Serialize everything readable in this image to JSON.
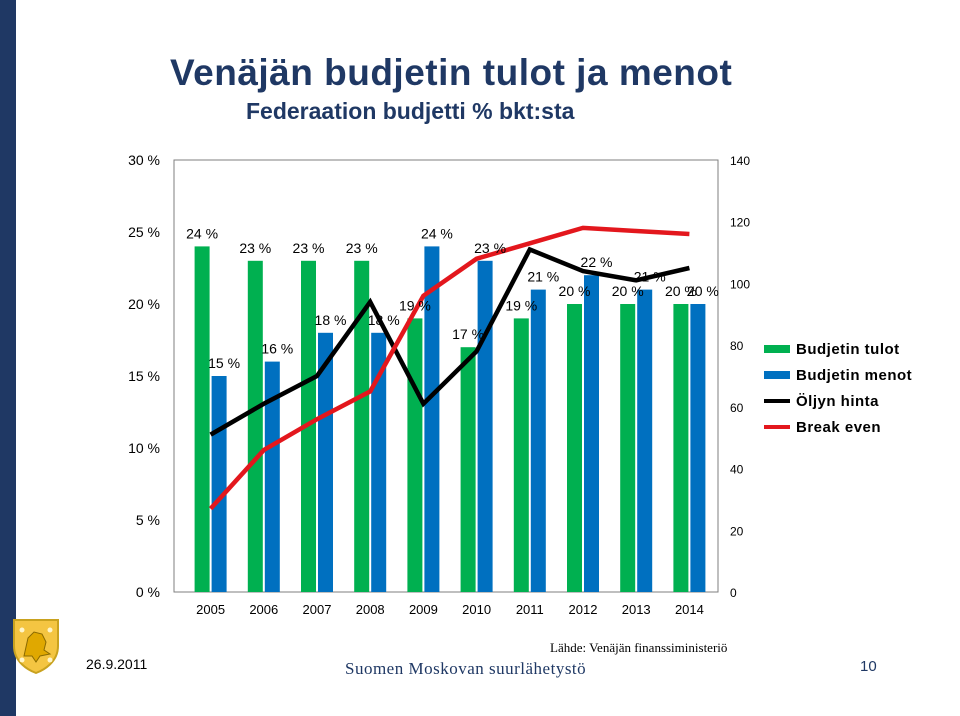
{
  "slide": {
    "title": "Venäjän budjetin tulot ja menot",
    "subtitle": "Federaation budjetti % bkt:sta",
    "date": "26.9.2011",
    "source": "Lähde: Venäjän finanssiministeriö",
    "embassy": "Suomen Moskovan suurlähetystö",
    "page_number": "10",
    "logo_icon": "finnish-coat-of-arms-icon",
    "left_bar_color": "#1f3864"
  },
  "chart_data": {
    "type": "bar",
    "categories": [
      "2005",
      "2006",
      "2007",
      "2008",
      "2009",
      "2010",
      "2011",
      "2012",
      "2013",
      "2014"
    ],
    "left_axis": {
      "ylim": [
        0,
        30
      ],
      "ticks": [
        "0 %",
        "5 %",
        "10 %",
        "15 %",
        "20 %",
        "25 %",
        "30 %"
      ]
    },
    "right_axis": {
      "ylim": [
        0,
        140
      ],
      "ticks": [
        "0",
        "20",
        "40",
        "60",
        "80",
        "100",
        "120",
        "140"
      ]
    },
    "grid": false,
    "legend_position": "right",
    "series": [
      {
        "name": "Budjetin tulot",
        "kind": "bar",
        "axis": "left",
        "color": "#00b050",
        "values": [
          24,
          23,
          23,
          23,
          19,
          17,
          19,
          20,
          20,
          20
        ],
        "labels": [
          "24 %",
          "23 %",
          "23 %",
          "23 %",
          "19 %",
          "17 %",
          "19 %",
          "20 %",
          "20 %",
          "20 %"
        ]
      },
      {
        "name": "Budjetin menot",
        "kind": "bar",
        "axis": "left",
        "color": "#0070c0",
        "values": [
          15,
          16,
          18,
          18,
          24,
          23,
          21,
          22,
          21,
          20
        ],
        "labels": [
          "15 %",
          "16 %",
          "18 %",
          "18 %",
          "24 %",
          "23 %",
          "21 %",
          "22 %",
          "21 %",
          "20 %"
        ]
      },
      {
        "name": "Öljyn hinta",
        "kind": "line",
        "axis": "right",
        "color": "#000000",
        "values": [
          51,
          61,
          70,
          94,
          61,
          78,
          111,
          104,
          101,
          105
        ]
      },
      {
        "name": "Break even",
        "kind": "line",
        "axis": "right",
        "color": "#e3171d",
        "values": [
          27,
          46,
          56,
          65,
          96,
          108,
          113,
          118,
          117,
          116
        ]
      }
    ]
  }
}
